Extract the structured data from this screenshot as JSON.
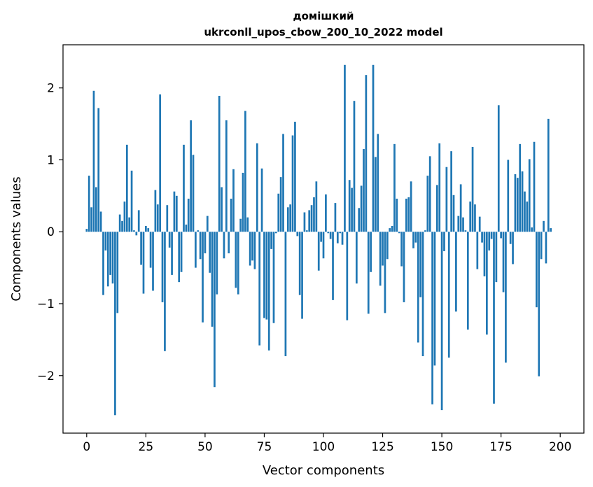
{
  "chart_data": {
    "type": "bar",
    "title": "домішкий",
    "subtitle": "ukrconll_upos_cbow_200_10_2022 model",
    "xlabel": "Vector components",
    "ylabel": "Components values",
    "xlim": [
      -10,
      210
    ],
    "ylim": [
      -2.8,
      2.6
    ],
    "x_ticks": [
      0,
      25,
      50,
      75,
      100,
      125,
      150,
      175,
      200
    ],
    "y_ticks": [
      -2,
      -1,
      0,
      1,
      2
    ],
    "x_tick_labels": [
      "0",
      "25",
      "50",
      "75",
      "100",
      "125",
      "150",
      "175",
      "200"
    ],
    "y_tick_labels": [
      "−2",
      "−1",
      "0",
      "1",
      "2"
    ],
    "grid": false,
    "bar_color": "#1f77b4",
    "values": [
      0.04,
      0.78,
      0.34,
      1.96,
      0.62,
      1.72,
      0.28,
      -0.88,
      -0.26,
      -0.76,
      -0.6,
      -0.72,
      -2.55,
      -1.13,
      0.24,
      0.15,
      0.42,
      1.21,
      0.2,
      0.85,
      0.02,
      -0.05,
      0.3,
      -0.46,
      -0.86,
      0.08,
      0.05,
      -0.5,
      -0.82,
      0.58,
      0.38,
      1.91,
      -0.98,
      -1.66,
      0.37,
      -0.22,
      -0.6,
      0.56,
      0.5,
      -0.7,
      -0.56,
      1.21,
      0.1,
      0.46,
      1.55,
      1.07,
      -0.5,
      0.02,
      -0.38,
      -1.26,
      -0.3,
      0.22,
      -0.57,
      -1.32,
      -2.16,
      -0.87,
      1.89,
      0.62,
      -0.37,
      1.55,
      -0.3,
      0.46,
      0.87,
      -0.78,
      -0.87,
      0.18,
      0.82,
      1.68,
      0.2,
      -0.47,
      -0.4,
      -0.52,
      1.23,
      -1.58,
      0.88,
      -1.2,
      -1.22,
      -1.65,
      -0.24,
      -1.27,
      -0.02,
      0.53,
      0.76,
      1.36,
      -1.73,
      0.34,
      0.38,
      1.34,
      1.53,
      -0.06,
      -0.88,
      -1.21,
      0.27,
      0.02,
      0.3,
      0.37,
      0.48,
      0.7,
      -0.54,
      -0.14,
      -0.37,
      0.52,
      -0.02,
      -0.1,
      -0.95,
      0.4,
      -0.16,
      -0.02,
      -0.18,
      2.32,
      -1.23,
      0.72,
      0.61,
      1.82,
      -0.72,
      0.33,
      0.64,
      1.15,
      2.18,
      -1.14,
      -0.56,
      2.32,
      1.04,
      1.36,
      -0.75,
      -0.47,
      -1.13,
      -0.38,
      0.05,
      0.08,
      1.22,
      0.46,
      -0.02,
      -0.48,
      -0.98,
      0.46,
      0.48,
      0.7,
      -0.23,
      -0.15,
      -1.54,
      -0.91,
      -1.73,
      0.02,
      0.78,
      1.05,
      -2.4,
      -1.86,
      0.65,
      1.23,
      -2.48,
      -0.27,
      0.9,
      -1.75,
      1.12,
      0.51,
      -1.11,
      0.22,
      0.66,
      0.2,
      0.02,
      -1.36,
      0.42,
      1.18,
      0.38,
      -0.52,
      0.21,
      -0.15,
      -0.62,
      -1.43,
      -0.26,
      -0.1,
      -2.39,
      -0.7,
      1.76,
      -0.09,
      -0.84,
      -1.82,
      1.0,
      -0.17,
      -0.45,
      0.8,
      0.75,
      1.22,
      0.84,
      0.56,
      0.42,
      1.01,
      0.06,
      1.25,
      -1.05,
      -2.01,
      -0.38,
      0.15,
      -0.44,
      1.57,
      0.05
    ]
  }
}
